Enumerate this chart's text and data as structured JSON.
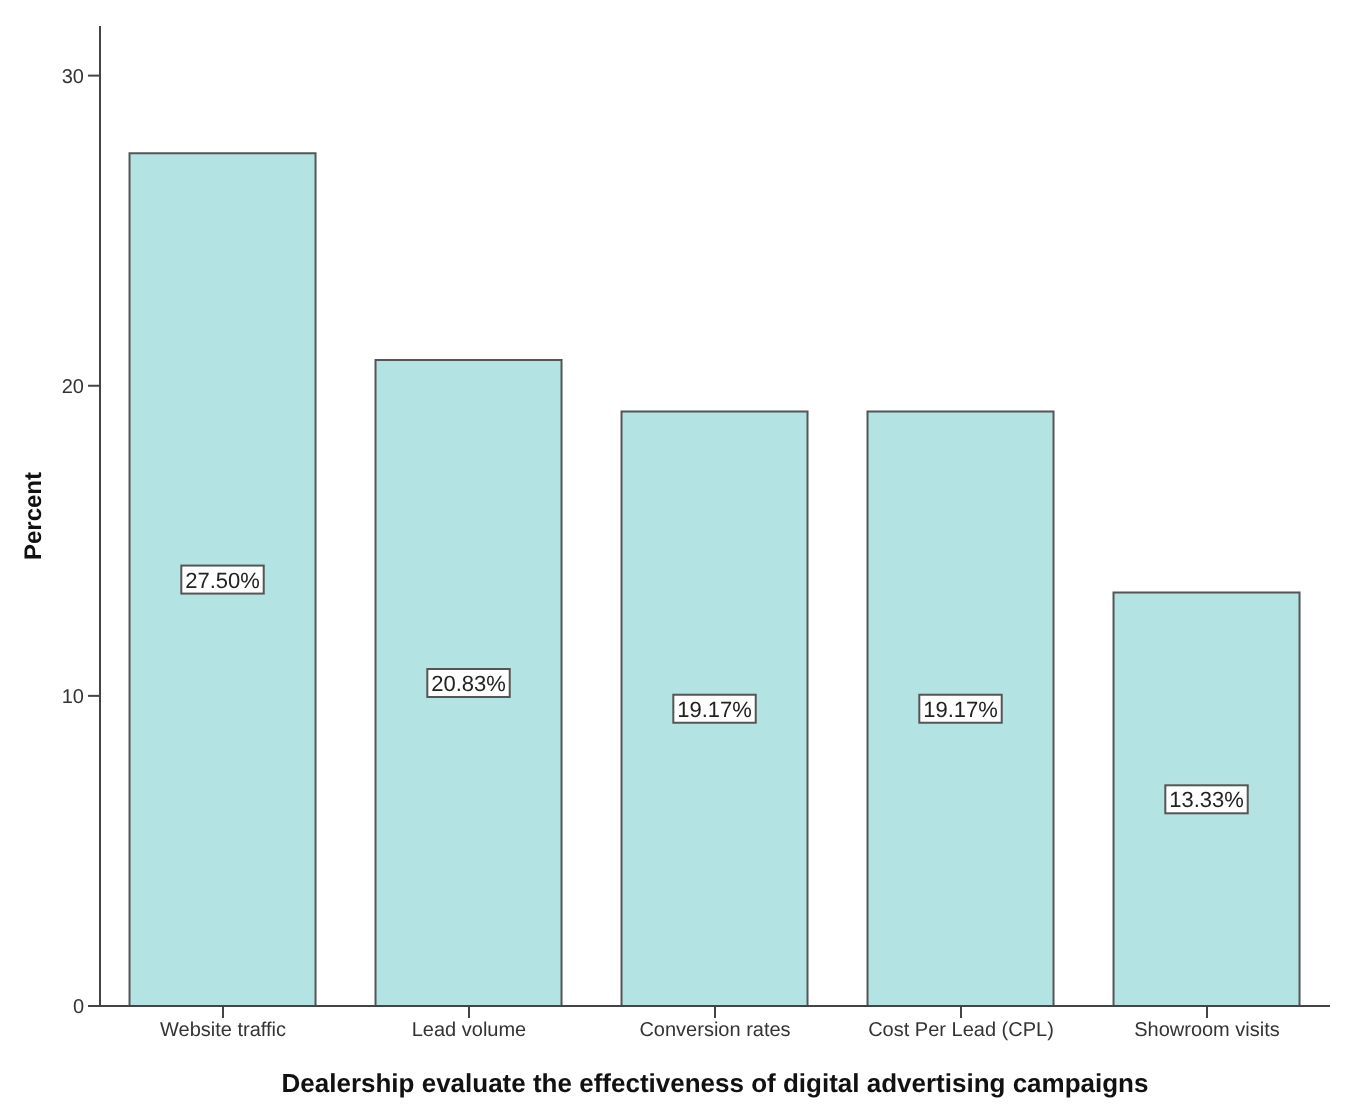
{
  "chart_data": {
    "type": "bar",
    "xlabel": "Dealership evaluate the effectiveness of digital advertising campaigns",
    "ylabel": "Percent",
    "categories": [
      "Website traffic",
      "Lead volume",
      "Conversion rates",
      "Cost Per Lead (CPL)",
      "Showroom visits"
    ],
    "values": [
      27.5,
      20.83,
      19.17,
      19.17,
      13.33
    ],
    "value_labels": [
      "27.50%",
      "20.83%",
      "19.17%",
      "19.17%",
      "13.33%"
    ],
    "color": "#b3e3e3",
    "ylim": [
      0,
      31.6
    ],
    "yticks": [
      0,
      10,
      20,
      30
    ],
    "grid": false,
    "legend": false
  }
}
